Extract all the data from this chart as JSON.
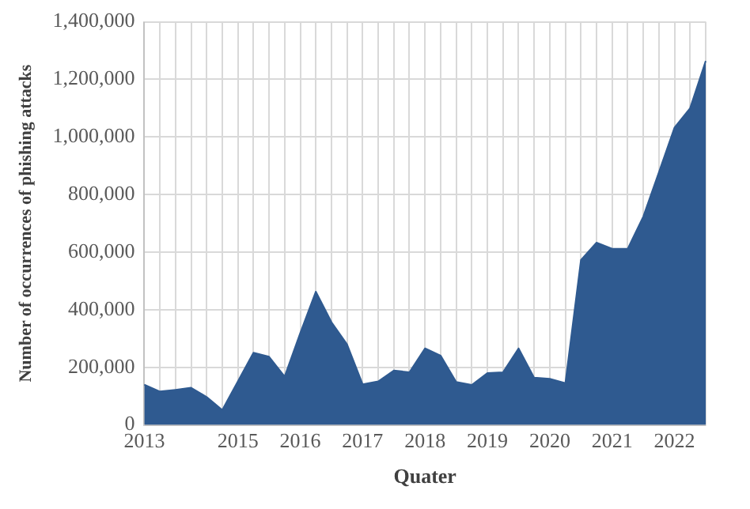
{
  "chart_data": {
    "type": "area",
    "xlabel": "Quater",
    "ylabel": "Number of occurrences of phishing attacks",
    "categories": [
      "2013",
      null,
      null,
      null,
      null,
      null,
      "2015",
      null,
      null,
      null,
      "2016",
      null,
      null,
      null,
      "2017",
      null,
      null,
      null,
      "2018",
      null,
      null,
      null,
      "2019",
      null,
      null,
      null,
      "2020",
      null,
      null,
      null,
      "2021",
      null,
      null,
      null,
      "2022",
      null,
      null
    ],
    "values": [
      140000,
      116000,
      122000,
      129000,
      97000,
      52000,
      151000,
      251000,
      237000,
      168000,
      319000,
      463000,
      357000,
      280000,
      141000,
      151000,
      189000,
      183000,
      266000,
      241000,
      149000,
      139000,
      180000,
      183000,
      266000,
      164000,
      160000,
      145000,
      573000,
      633000,
      612000,
      612000,
      724000,
      878000,
      1033000,
      1100000,
      1264000
    ],
    "color": "#2f5a90",
    "ylim": [
      0,
      1400000
    ],
    "yticks": [
      0,
      {
        "value": 200000,
        "label": "200,000"
      },
      {
        "value": 400000,
        "label": "400,000"
      },
      {
        "value": 600000,
        "label": "600,000"
      },
      {
        "value": 800000,
        "label": "800,000"
      },
      {
        "value": 1000000,
        "label": "1,000,000"
      },
      {
        "value": 1200000,
        "label": "1,200,000"
      },
      {
        "value": 1400000,
        "label": "1,400,000"
      }
    ],
    "grid": true,
    "legend": false
  }
}
